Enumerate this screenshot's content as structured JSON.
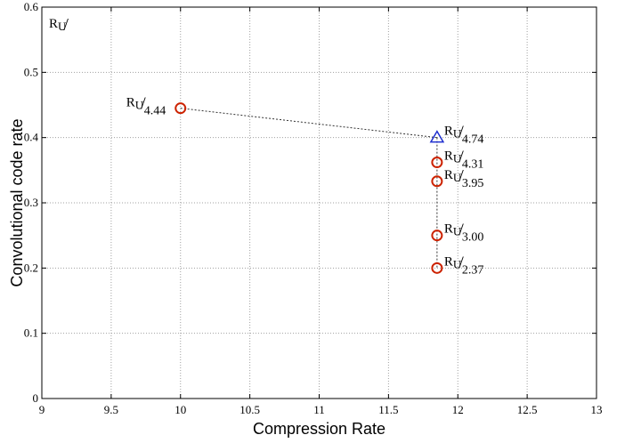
{
  "chart_data": {
    "type": "scatter",
    "xlabel": "Compression Rate",
    "ylabel": "Convolutional code rate",
    "xlim": [
      9,
      13
    ],
    "ylim": [
      0,
      0.6
    ],
    "xticks": [
      "9",
      "9.5",
      "10",
      "10.5",
      "11",
      "11.5",
      "12",
      "12.5",
      "13"
    ],
    "yticks": [
      "0",
      "0.1",
      "0.2",
      "0.3",
      "0.4",
      "0.5",
      "0.6"
    ],
    "grid": true,
    "corner_label": {
      "main": "R",
      "sub": "U",
      "slash": "/"
    },
    "points": [
      {
        "x": 10.0,
        "y": 0.445,
        "marker": "circle",
        "color": "#cc2200",
        "label": {
          "main": "R",
          "sub": "U",
          "slash": "/",
          "den": "4.44"
        }
      },
      {
        "x": 11.85,
        "y": 0.4,
        "marker": "triangle",
        "color": "#1f2fcf",
        "label": {
          "main": "R",
          "sub": "U",
          "slash": "/",
          "den": "4.74"
        }
      },
      {
        "x": 11.85,
        "y": 0.362,
        "marker": "circle",
        "color": "#cc2200",
        "label": {
          "main": "R",
          "sub": "U",
          "slash": "/",
          "den": "4.31"
        }
      },
      {
        "x": 11.85,
        "y": 0.333,
        "marker": "circle",
        "color": "#cc2200",
        "label": {
          "main": "R",
          "sub": "U",
          "slash": "/",
          "den": "3.95"
        }
      },
      {
        "x": 11.85,
        "y": 0.25,
        "marker": "circle",
        "color": "#cc2200",
        "label": {
          "main": "R",
          "sub": "U",
          "slash": "/",
          "den": "3.00"
        }
      },
      {
        "x": 11.85,
        "y": 0.2,
        "marker": "circle",
        "color": "#cc2200",
        "label": {
          "main": "R",
          "sub": "U",
          "slash": "/",
          "den": "2.37"
        }
      }
    ],
    "connectors": [
      {
        "from": [
          10.0,
          0.445
        ],
        "to": [
          11.85,
          0.4
        ]
      },
      {
        "from": [
          11.85,
          0.4
        ],
        "to": [
          11.85,
          0.2
        ]
      }
    ]
  }
}
